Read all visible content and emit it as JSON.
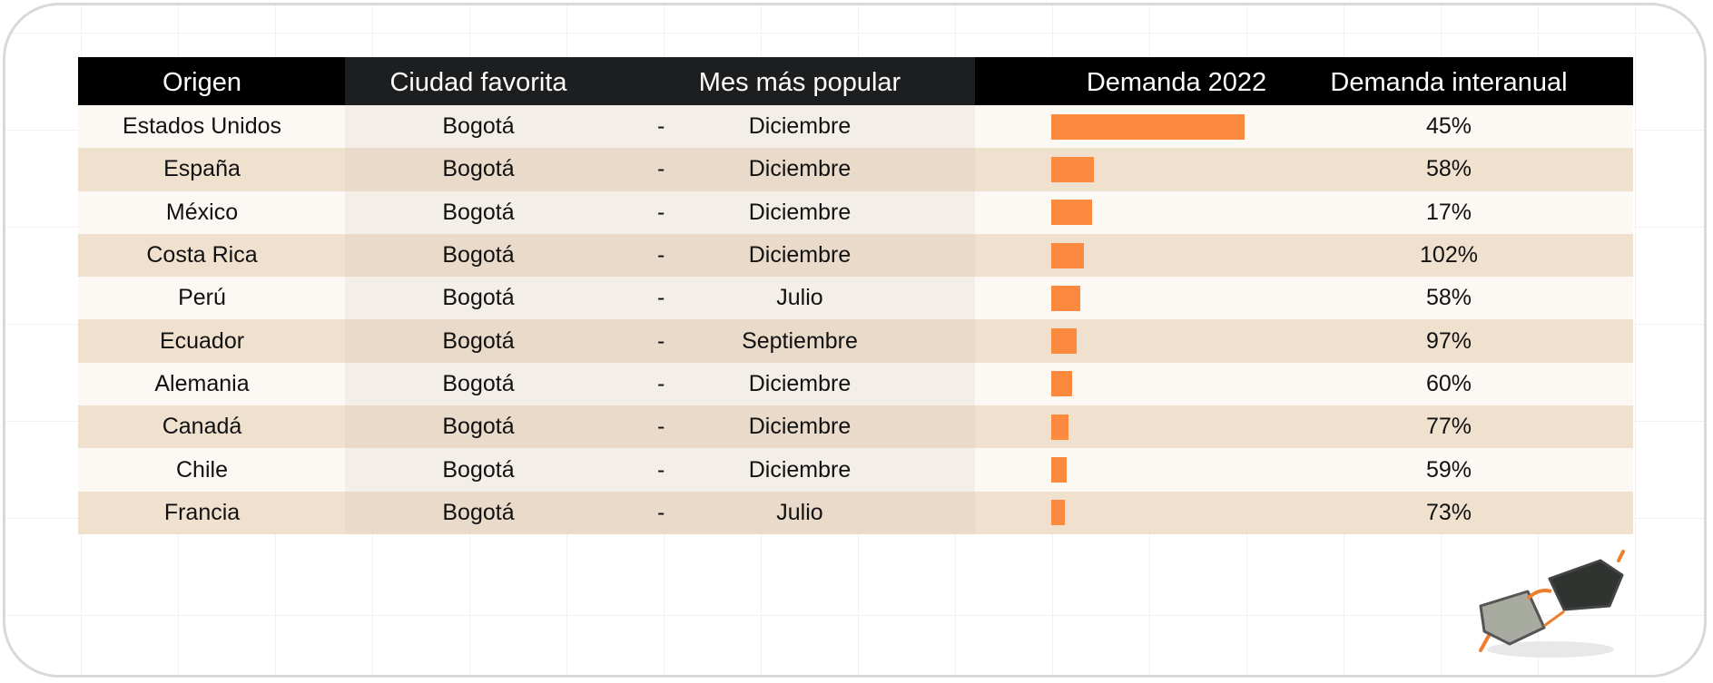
{
  "chart_data": {
    "type": "table",
    "columns": [
      "Origen",
      "Ciudad favorita",
      "Mes más popular",
      "Demanda 2022",
      "Demanda interanual"
    ],
    "rows": [
      {
        "origen": "Estados Unidos",
        "ciudad": "Bogotá",
        "separador": "-",
        "mes": "Diciembre",
        "demanda_2022": 100,
        "interanual": "45%"
      },
      {
        "origen": "España",
        "ciudad": "Bogotá",
        "separador": "-",
        "mes": "Diciembre",
        "demanda_2022": 22,
        "interanual": "58%"
      },
      {
        "origen": "México",
        "ciudad": "Bogotá",
        "separador": "-",
        "mes": "Diciembre",
        "demanda_2022": 21,
        "interanual": "17%"
      },
      {
        "origen": "Costa Rica",
        "ciudad": "Bogotá",
        "separador": "-",
        "mes": "Diciembre",
        "demanda_2022": 17,
        "interanual": "102%"
      },
      {
        "origen": "Perú",
        "ciudad": "Bogotá",
        "separador": "-",
        "mes": "Julio",
        "demanda_2022": 15,
        "interanual": "58%"
      },
      {
        "origen": "Ecuador",
        "ciudad": "Bogotá",
        "separador": "-",
        "mes": "Septiembre",
        "demanda_2022": 13,
        "interanual": "97%"
      },
      {
        "origen": "Alemania",
        "ciudad": "Bogotá",
        "separador": "-",
        "mes": "Diciembre",
        "demanda_2022": 11,
        "interanual": "60%"
      },
      {
        "origen": "Canadá",
        "ciudad": "Bogotá",
        "separador": "-",
        "mes": "Diciembre",
        "demanda_2022": 9,
        "interanual": "77%"
      },
      {
        "origen": "Chile",
        "ciudad": "Bogotá",
        "separador": "-",
        "mes": "Diciembre",
        "demanda_2022": 8,
        "interanual": "59%"
      },
      {
        "origen": "Francia",
        "ciudad": "Bogotá",
        "separador": "-",
        "mes": "Julio",
        "demanda_2022": 7,
        "interanual": "73%"
      }
    ],
    "bar_color": "#fb8a3f",
    "header_color": "#000000",
    "row_colors": [
      "#fcf8f3",
      "#f0e1cf"
    ]
  },
  "decoration": {
    "icon": "sunglasses-icon"
  }
}
